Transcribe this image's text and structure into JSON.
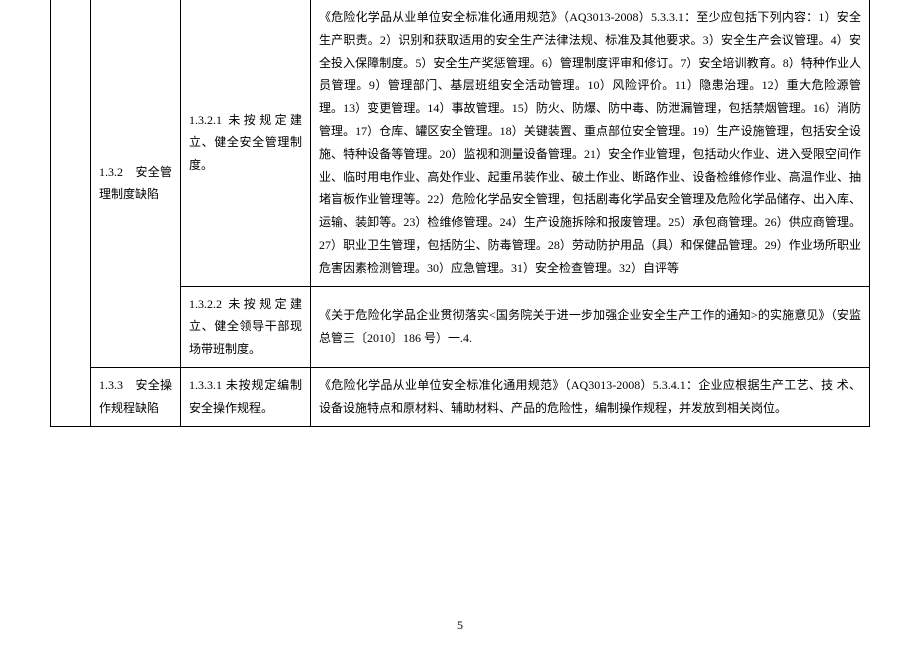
{
  "table": {
    "rows": [
      {
        "col2": "1.3.2　安全管理制度缺陷",
        "col2_rowspan": 2,
        "col3": "1.3.2.1 未按规定建立、健全安全管理制度。",
        "col4": "《危险化学品从业单位安全标准化通用规范》（AQ3013-2008）5.3.3.1：至少应包括下列内容：1）安全生产职责。2）识别和获取适用的安全生产法律法规、标准及其他要求。3）安全生产会议管理。4）安全投入保障制度。5）安全生产奖惩管理。6）管理制度评审和修订。7）安全培训教育。8）特种作业人员管理。9）管理部门、基层班组安全活动管理。10）风险评价。11）隐患治理。12）重大危险源管理。13）变更管理。14）事故管理。15）防火、防爆、防中毒、防泄漏管理，包括禁烟管理。16）消防管理。17）仓库、罐区安全管理。18）关键装置、重点部位安全管理。19）生产设施管理，包括安全设施、特种设备等管理。20）监视和测量设备管理。21）安全作业管理，包括动火作业、进入受限空间作业、临时用电作业、高处作业、起重吊装作业、破土作业、断路作业、设备检维修作业、高温作业、抽堵盲板作业管理等。22）危险化学品安全管理，包括剧毒化学品安全管理及危险化学品储存、出入库、运输、装卸等。23）检维修管理。24）生产设施拆除和报废管理。25）承包商管理。26）供应商管理。27）职业卫生管理，包括防尘、防毒管理。28）劳动防护用品（具）和保健品管理。29）作业场所职业危害因素检测管理。30）应急管理。31）安全检查管理。32）自评等"
      },
      {
        "col3": "1.3.2.2 未按规定建立、健全领导干部现场带班制度。",
        "col4": "《关于危险化学品企业贯彻落实<国务院关于进一步加强企业安全生产工作的通知>的实施意见》（安监总管三〔2010〕186 号）一.4."
      },
      {
        "col2": "1.3.3　安全操作规程缺陷",
        "col2_rowspan": 1,
        "col3": "1.3.3.1 未按规定编制安全操作规程。",
        "col4": "《危险化学品从业单位安全标准化通用规范》（AQ3013-2008）5.3.4.1：企业应根据生产工艺、技 术、设备设施特点和原材料、辅助材料、产品的危险性，编制操作规程，并发放到相关岗位。"
      }
    ]
  },
  "pageNumber": "5"
}
